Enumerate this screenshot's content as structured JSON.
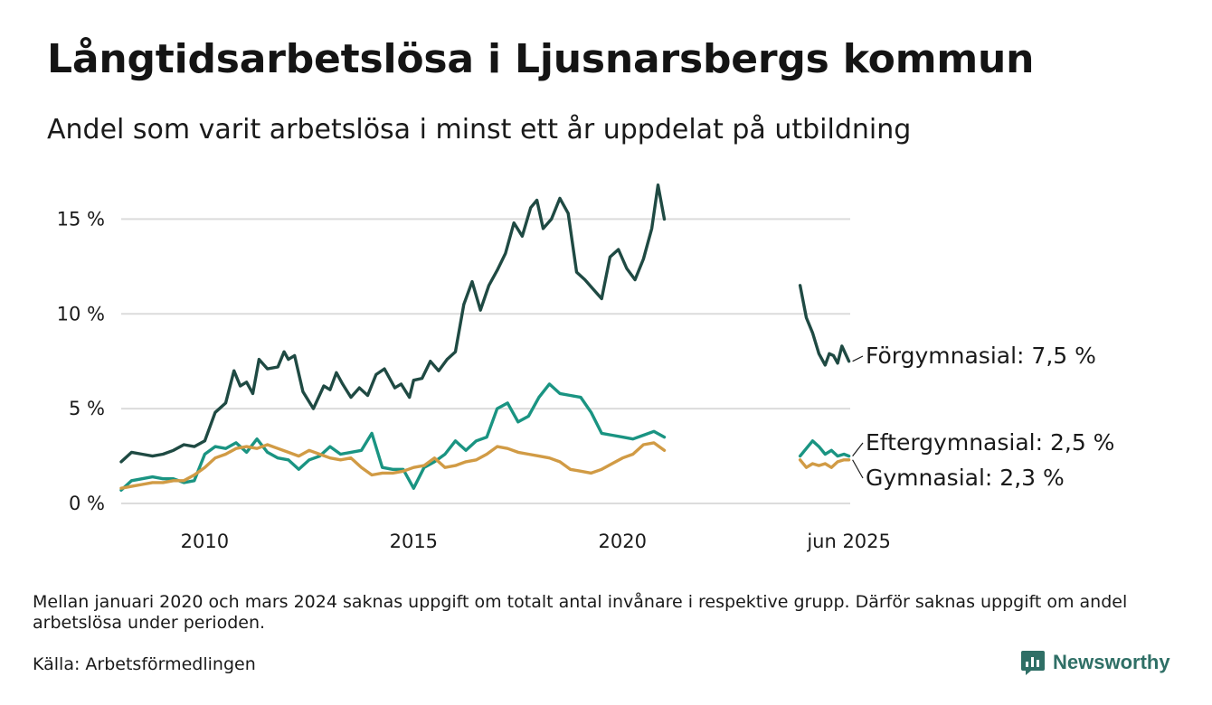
{
  "title": "Långtidsarbetslösa i Ljusnarsbergs kommun",
  "subtitle": "Andel som varit arbetslösa i minst ett år uppdelat på utbildning",
  "footnote": "Mellan januari 2020 och mars 2024 saknas uppgift om totalt antal invånare i respektive grupp. Därför saknas uppgift om andel arbetslösa under perioden.",
  "source": "Källa: Arbetsförmedlingen",
  "brand": {
    "name": "Newsworthy",
    "icon": "newsworthy-logo-icon",
    "color": "#2f6f66"
  },
  "chart_data": {
    "type": "line",
    "y_ticks": [
      "0 %",
      "5 %",
      "10 %",
      "15 %"
    ],
    "y_tick_values": [
      0,
      5,
      10,
      15
    ],
    "ylim": [
      0,
      17.5
    ],
    "x_ticks": [
      {
        "label": "2010",
        "value": 2010.0
      },
      {
        "label": "2015",
        "value": 2015.0
      },
      {
        "label": "2020",
        "value": 2020.0
      },
      {
        "label": "jun 2025",
        "value": 2025.42
      }
    ],
    "xlim": [
      2008.0,
      2025.45
    ],
    "grid": true,
    "series": [
      {
        "name": "Förgymnasial",
        "end_label": "Förgymnasial: 7,5 %",
        "color": "#1f4a43",
        "segments": [
          [
            [
              2008.0,
              2.2
            ],
            [
              2008.25,
              2.7
            ],
            [
              2008.5,
              2.6
            ],
            [
              2008.75,
              2.5
            ],
            [
              2009.0,
              2.6
            ],
            [
              2009.25,
              2.8
            ],
            [
              2009.5,
              3.1
            ],
            [
              2009.75,
              3.0
            ],
            [
              2010.0,
              3.3
            ],
            [
              2010.25,
              4.8
            ],
            [
              2010.5,
              5.3
            ],
            [
              2010.7,
              7.0
            ],
            [
              2010.85,
              6.2
            ],
            [
              2011.0,
              6.4
            ],
            [
              2011.15,
              5.8
            ],
            [
              2011.3,
              7.6
            ],
            [
              2011.5,
              7.1
            ],
            [
              2011.75,
              7.2
            ],
            [
              2011.9,
              8.0
            ],
            [
              2012.0,
              7.6
            ],
            [
              2012.15,
              7.8
            ],
            [
              2012.35,
              5.9
            ],
            [
              2012.6,
              5.0
            ],
            [
              2012.85,
              6.2
            ],
            [
              2013.0,
              6.0
            ],
            [
              2013.15,
              6.9
            ],
            [
              2013.3,
              6.3
            ],
            [
              2013.5,
              5.6
            ],
            [
              2013.7,
              6.1
            ],
            [
              2013.9,
              5.7
            ],
            [
              2014.1,
              6.8
            ],
            [
              2014.3,
              7.1
            ],
            [
              2014.55,
              6.1
            ],
            [
              2014.7,
              6.3
            ],
            [
              2014.9,
              5.6
            ],
            [
              2015.0,
              6.5
            ],
            [
              2015.2,
              6.6
            ],
            [
              2015.4,
              7.5
            ],
            [
              2015.6,
              7.0
            ],
            [
              2015.8,
              7.6
            ],
            [
              2016.0,
              8.0
            ],
            [
              2016.2,
              10.5
            ],
            [
              2016.4,
              11.7
            ],
            [
              2016.6,
              10.2
            ],
            [
              2016.8,
              11.5
            ],
            [
              2017.0,
              12.3
            ],
            [
              2017.2,
              13.2
            ],
            [
              2017.4,
              14.8
            ],
            [
              2017.6,
              14.1
            ],
            [
              2017.8,
              15.6
            ],
            [
              2017.95,
              16.0
            ],
            [
              2018.1,
              14.5
            ],
            [
              2018.3,
              15.0
            ],
            [
              2018.5,
              16.1
            ],
            [
              2018.7,
              15.3
            ],
            [
              2018.9,
              12.2
            ],
            [
              2019.1,
              11.8
            ],
            [
              2019.3,
              11.3
            ],
            [
              2019.5,
              10.8
            ],
            [
              2019.7,
              13.0
            ],
            [
              2019.9,
              13.4
            ],
            [
              2020.1,
              12.4
            ],
            [
              2020.3,
              11.8
            ],
            [
              2020.5,
              12.9
            ],
            [
              2020.7,
              14.5
            ],
            [
              2020.85,
              16.8
            ],
            [
              2021.0,
              15.0
            ]
          ],
          [
            [
              2024.25,
              11.5
            ],
            [
              2024.4,
              9.8
            ],
            [
              2024.55,
              9.0
            ],
            [
              2024.7,
              7.9
            ],
            [
              2024.85,
              7.3
            ],
            [
              2024.95,
              7.9
            ],
            [
              2025.05,
              7.8
            ],
            [
              2025.15,
              7.4
            ],
            [
              2025.25,
              8.3
            ],
            [
              2025.42,
              7.5
            ]
          ]
        ]
      },
      {
        "name": "Eftergymnasial",
        "end_label": "Eftergymnasial: 2,5 %",
        "color": "#1a9482",
        "segments": [
          [
            [
              2008.0,
              0.7
            ],
            [
              2008.25,
              1.2
            ],
            [
              2008.5,
              1.3
            ],
            [
              2008.75,
              1.4
            ],
            [
              2009.0,
              1.3
            ],
            [
              2009.25,
              1.3
            ],
            [
              2009.5,
              1.1
            ],
            [
              2009.75,
              1.2
            ],
            [
              2010.0,
              2.6
            ],
            [
              2010.25,
              3.0
            ],
            [
              2010.5,
              2.9
            ],
            [
              2010.75,
              3.2
            ],
            [
              2011.0,
              2.7
            ],
            [
              2011.25,
              3.4
            ],
            [
              2011.5,
              2.7
            ],
            [
              2011.75,
              2.4
            ],
            [
              2012.0,
              2.3
            ],
            [
              2012.25,
              1.8
            ],
            [
              2012.5,
              2.3
            ],
            [
              2012.75,
              2.5
            ],
            [
              2013.0,
              3.0
            ],
            [
              2013.25,
              2.6
            ],
            [
              2013.5,
              2.7
            ],
            [
              2013.75,
              2.8
            ],
            [
              2014.0,
              3.7
            ],
            [
              2014.25,
              1.9
            ],
            [
              2014.5,
              1.8
            ],
            [
              2014.75,
              1.8
            ],
            [
              2015.0,
              0.8
            ],
            [
              2015.25,
              1.9
            ],
            [
              2015.5,
              2.2
            ],
            [
              2015.75,
              2.6
            ],
            [
              2016.0,
              3.3
            ],
            [
              2016.25,
              2.8
            ],
            [
              2016.5,
              3.3
            ],
            [
              2016.75,
              3.5
            ],
            [
              2017.0,
              5.0
            ],
            [
              2017.25,
              5.3
            ],
            [
              2017.5,
              4.3
            ],
            [
              2017.75,
              4.6
            ],
            [
              2018.0,
              5.6
            ],
            [
              2018.25,
              6.3
            ],
            [
              2018.5,
              5.8
            ],
            [
              2018.75,
              5.7
            ],
            [
              2019.0,
              5.6
            ],
            [
              2019.25,
              4.8
            ],
            [
              2019.5,
              3.7
            ],
            [
              2019.75,
              3.6
            ],
            [
              2020.0,
              3.5
            ],
            [
              2020.25,
              3.4
            ],
            [
              2020.5,
              3.6
            ],
            [
              2020.75,
              3.8
            ],
            [
              2021.0,
              3.5
            ]
          ],
          [
            [
              2024.25,
              2.5
            ],
            [
              2024.4,
              2.9
            ],
            [
              2024.55,
              3.3
            ],
            [
              2024.7,
              3.0
            ],
            [
              2024.85,
              2.6
            ],
            [
              2025.0,
              2.8
            ],
            [
              2025.15,
              2.5
            ],
            [
              2025.3,
              2.6
            ],
            [
              2025.42,
              2.5
            ]
          ]
        ]
      },
      {
        "name": "Gymnasial",
        "end_label": "Gymnasial: 2,3 %",
        "color": "#d19b45",
        "segments": [
          [
            [
              2008.0,
              0.8
            ],
            [
              2008.25,
              0.9
            ],
            [
              2008.5,
              1.0
            ],
            [
              2008.75,
              1.1
            ],
            [
              2009.0,
              1.1
            ],
            [
              2009.25,
              1.2
            ],
            [
              2009.5,
              1.2
            ],
            [
              2009.75,
              1.5
            ],
            [
              2010.0,
              1.9
            ],
            [
              2010.25,
              2.4
            ],
            [
              2010.5,
              2.6
            ],
            [
              2010.75,
              2.9
            ],
            [
              2011.0,
              3.0
            ],
            [
              2011.25,
              2.9
            ],
            [
              2011.5,
              3.1
            ],
            [
              2011.75,
              2.9
            ],
            [
              2012.0,
              2.7
            ],
            [
              2012.25,
              2.5
            ],
            [
              2012.5,
              2.8
            ],
            [
              2012.75,
              2.6
            ],
            [
              2013.0,
              2.4
            ],
            [
              2013.25,
              2.3
            ],
            [
              2013.5,
              2.4
            ],
            [
              2013.75,
              1.9
            ],
            [
              2014.0,
              1.5
            ],
            [
              2014.25,
              1.6
            ],
            [
              2014.5,
              1.6
            ],
            [
              2014.75,
              1.7
            ],
            [
              2015.0,
              1.9
            ],
            [
              2015.25,
              2.0
            ],
            [
              2015.5,
              2.4
            ],
            [
              2015.75,
              1.9
            ],
            [
              2016.0,
              2.0
            ],
            [
              2016.25,
              2.2
            ],
            [
              2016.5,
              2.3
            ],
            [
              2016.75,
              2.6
            ],
            [
              2017.0,
              3.0
            ],
            [
              2017.25,
              2.9
            ],
            [
              2017.5,
              2.7
            ],
            [
              2017.75,
              2.6
            ],
            [
              2018.0,
              2.5
            ],
            [
              2018.25,
              2.4
            ],
            [
              2018.5,
              2.2
            ],
            [
              2018.75,
              1.8
            ],
            [
              2019.0,
              1.7
            ],
            [
              2019.25,
              1.6
            ],
            [
              2019.5,
              1.8
            ],
            [
              2019.75,
              2.1
            ],
            [
              2020.0,
              2.4
            ],
            [
              2020.25,
              2.6
            ],
            [
              2020.5,
              3.1
            ],
            [
              2020.75,
              3.2
            ],
            [
              2021.0,
              2.8
            ]
          ],
          [
            [
              2024.25,
              2.3
            ],
            [
              2024.4,
              1.9
            ],
            [
              2024.55,
              2.1
            ],
            [
              2024.7,
              2.0
            ],
            [
              2024.85,
              2.1
            ],
            [
              2025.0,
              1.9
            ],
            [
              2025.15,
              2.2
            ],
            [
              2025.3,
              2.3
            ],
            [
              2025.42,
              2.3
            ]
          ]
        ]
      }
    ]
  }
}
